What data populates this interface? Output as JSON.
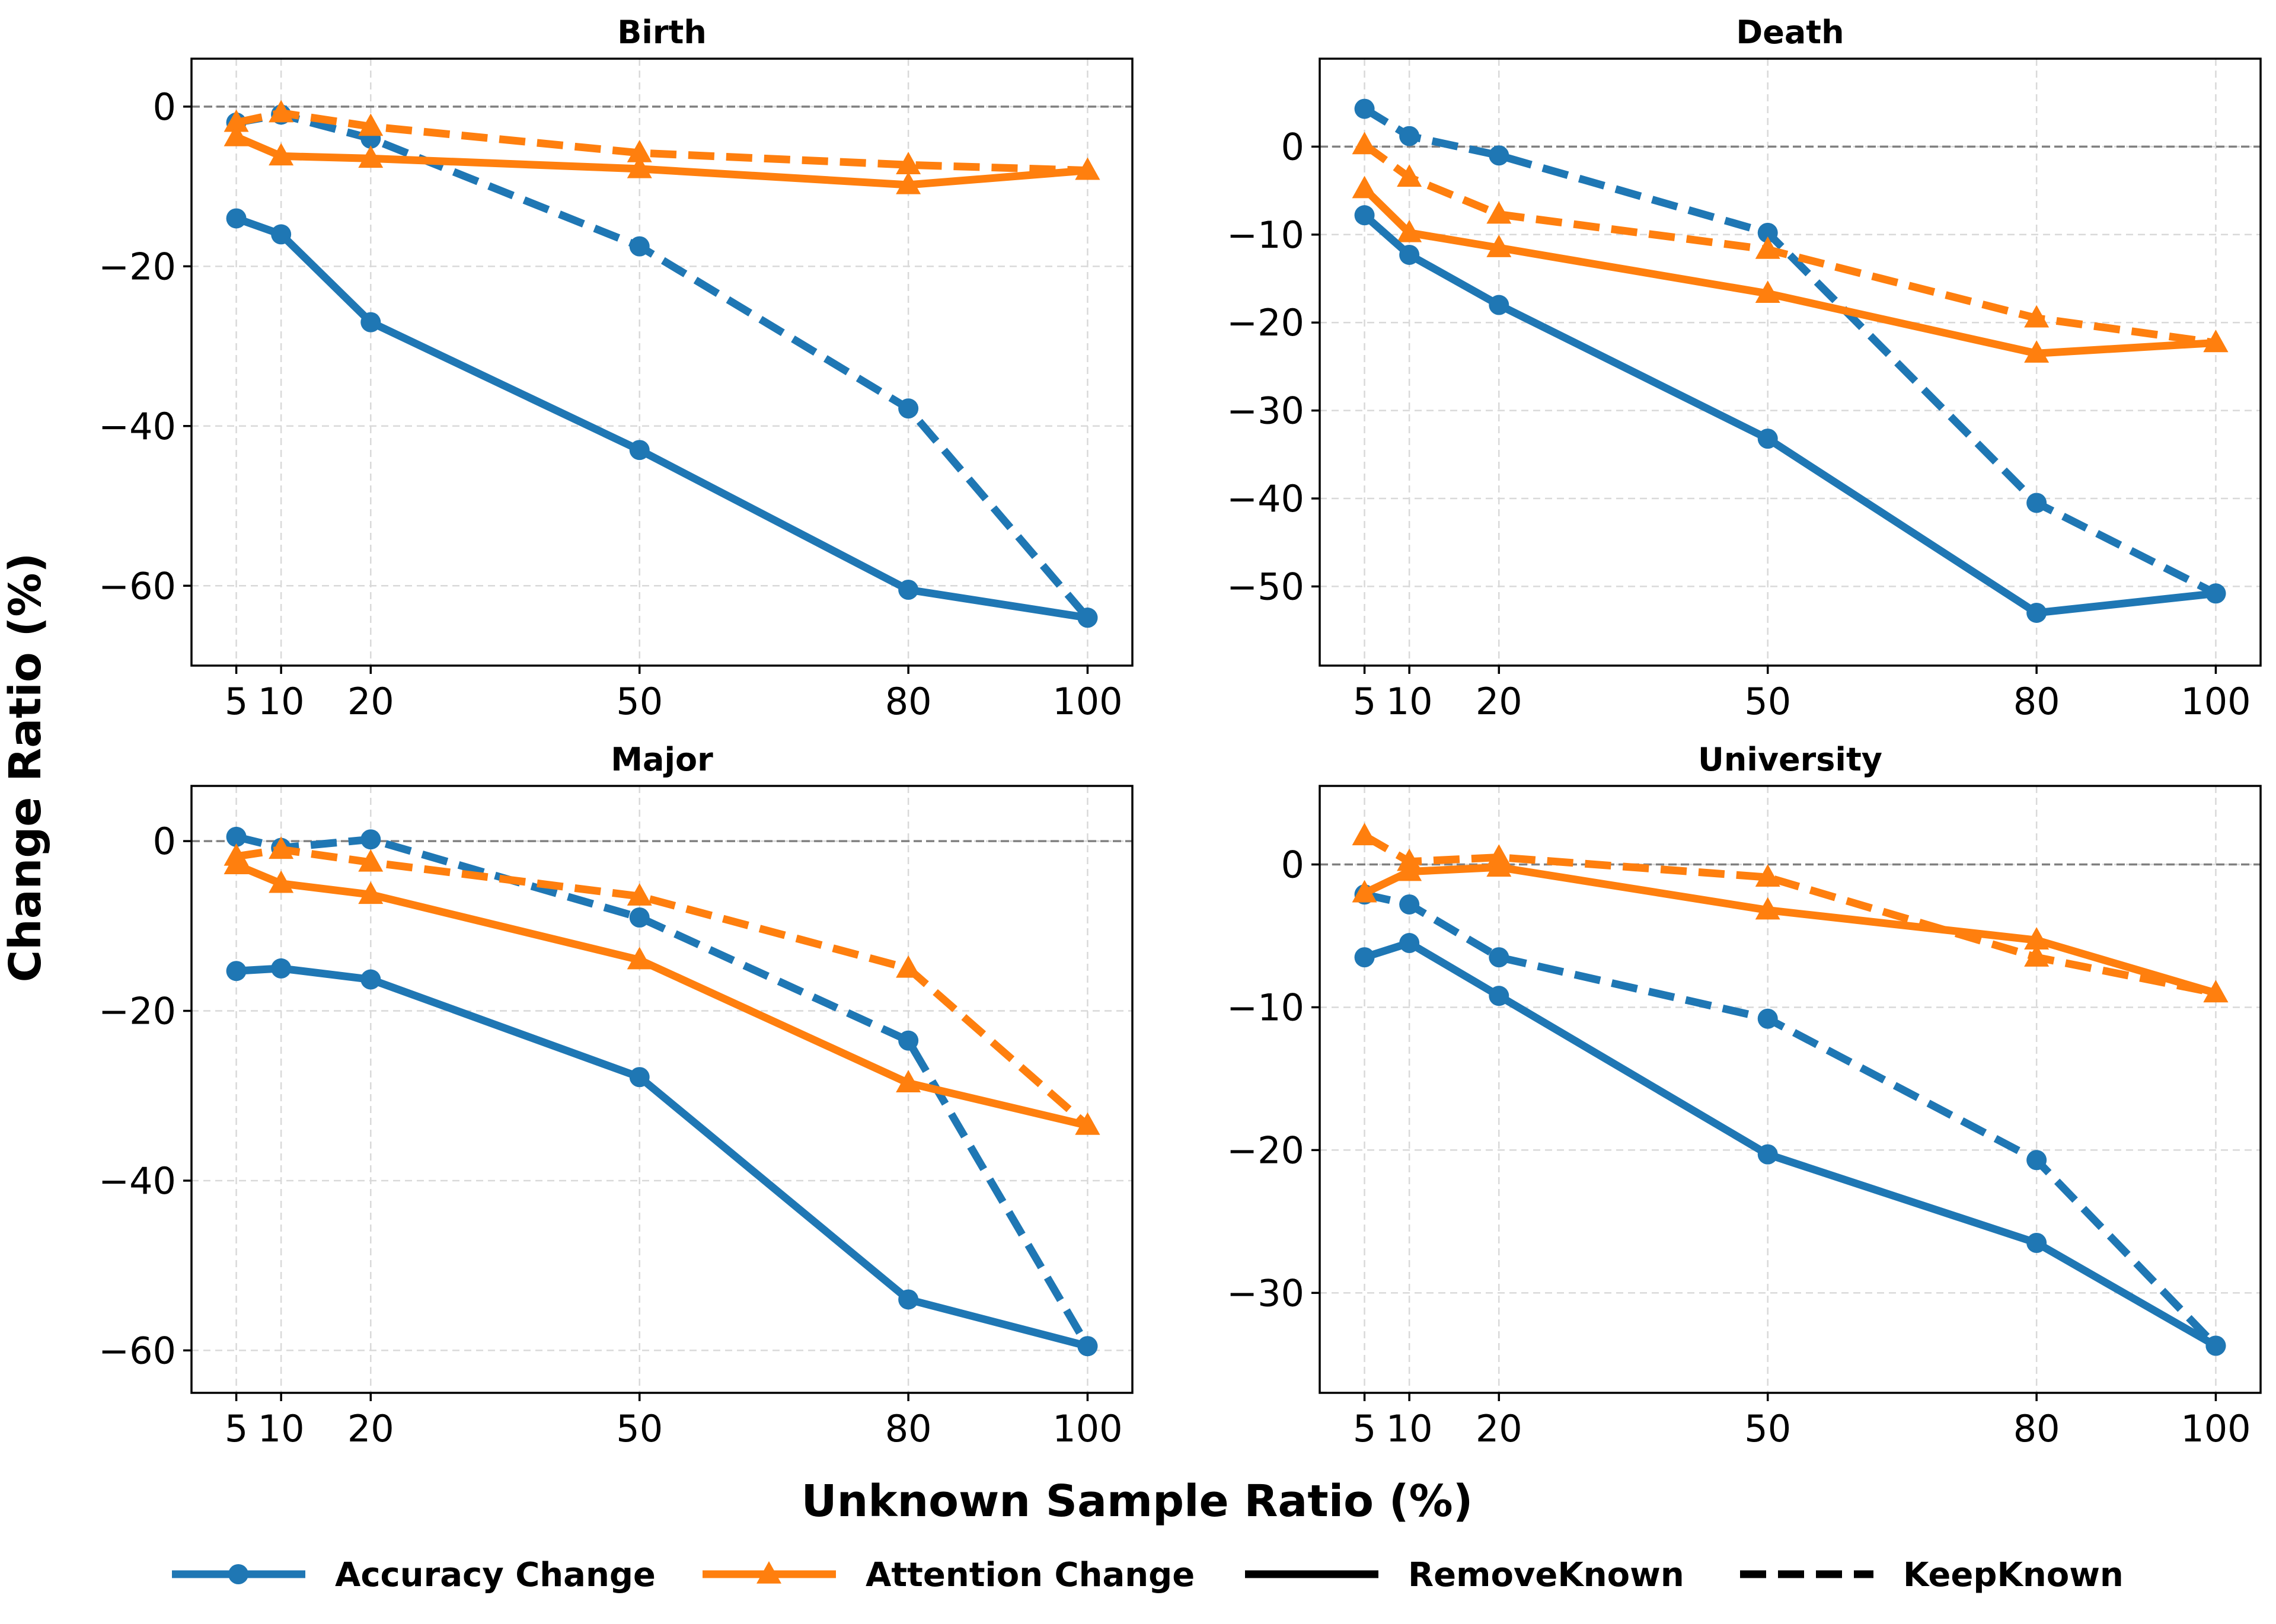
{
  "figure": {
    "xlabel": "Unknown Sample Ratio (%)",
    "ylabel": "Change Ratio (%)"
  },
  "colors": {
    "accuracy": "#1f77b4",
    "attention": "#ff7f0e",
    "legend_line": "#000000",
    "zero_line": "#808080",
    "grid": "#d9d9d9"
  },
  "legend": {
    "placement": "bottom-center",
    "items": [
      {
        "label": "Accuracy Change",
        "kind": "series",
        "color_key": "accuracy",
        "marker": "circle",
        "dash": "solid"
      },
      {
        "label": "Attention Change",
        "kind": "series",
        "color_key": "attention",
        "marker": "triangle",
        "dash": "solid"
      },
      {
        "label": "RemoveKnown",
        "kind": "style",
        "color_key": "legend_line",
        "marker": "none",
        "dash": "solid"
      },
      {
        "label": "KeepKnown",
        "kind": "style",
        "color_key": "legend_line",
        "marker": "none",
        "dash": "dashed"
      }
    ]
  },
  "chart_data": [
    {
      "type": "line",
      "title": "Birth",
      "x": [
        5,
        10,
        20,
        50,
        80,
        100
      ],
      "xticks": [
        5,
        10,
        20,
        50,
        80,
        100
      ],
      "xlim": [
        0,
        105
      ],
      "ylim": [
        -70,
        6
      ],
      "yticks": [
        0,
        -20,
        -40,
        -60
      ],
      "grid": true,
      "series": [
        {
          "name": "Accuracy Change (KeepKnown)",
          "metric": "accuracy",
          "style": "dashed",
          "values": [
            -2,
            -1,
            -4,
            -17.5,
            -37.8,
            -64
          ]
        },
        {
          "name": "Attention Change (KeepKnown)",
          "metric": "attention",
          "style": "dashed",
          "values": [
            -2,
            -0.8,
            -2.5,
            -5.8,
            -7.3,
            -8
          ]
        },
        {
          "name": "Attention Change (RemoveKnown)",
          "metric": "attention",
          "style": "solid",
          "values": [
            -3.8,
            -6.2,
            -6.5,
            -7.8,
            -9.8,
            -8
          ]
        },
        {
          "name": "Accuracy Change (RemoveKnown)",
          "metric": "accuracy",
          "style": "solid",
          "values": [
            -14,
            -16,
            -27,
            -43,
            -60.5,
            -64
          ]
        }
      ]
    },
    {
      "type": "line",
      "title": "Death",
      "x": [
        5,
        10,
        20,
        50,
        80,
        100
      ],
      "xticks": [
        5,
        10,
        20,
        50,
        80,
        100
      ],
      "xlim": [
        0,
        105
      ],
      "ylim": [
        -59,
        10
      ],
      "yticks": [
        0,
        -10,
        -20,
        -30,
        -40,
        -50
      ],
      "grid": true,
      "series": [
        {
          "name": "Accuracy Change (KeepKnown)",
          "metric": "accuracy",
          "style": "dashed",
          "values": [
            4.3,
            1.2,
            -1,
            -9.8,
            -40.5,
            -50.8
          ]
        },
        {
          "name": "Attention Change (KeepKnown)",
          "metric": "attention",
          "style": "dashed",
          "values": [
            0.2,
            -3.5,
            -7.7,
            -11.7,
            -19.5,
            -22.3
          ]
        },
        {
          "name": "Attention Change (RemoveKnown)",
          "metric": "attention",
          "style": "solid",
          "values": [
            -4.8,
            -9.8,
            -11.5,
            -16.7,
            -23.5,
            -22.3
          ]
        },
        {
          "name": "Accuracy Change (RemoveKnown)",
          "metric": "accuracy",
          "style": "solid",
          "values": [
            -7.8,
            -12.3,
            -18,
            -33.2,
            -53,
            -50.8
          ]
        }
      ]
    },
    {
      "type": "line",
      "title": "Major",
      "x": [
        5,
        10,
        20,
        50,
        80,
        100
      ],
      "xticks": [
        5,
        10,
        20,
        50,
        80,
        100
      ],
      "xlim": [
        0,
        105
      ],
      "ylim": [
        -65,
        6.5
      ],
      "yticks": [
        0,
        -20,
        -40,
        -60
      ],
      "grid": true,
      "series": [
        {
          "name": "Accuracy Change (KeepKnown)",
          "metric": "accuracy",
          "style": "dashed",
          "values": [
            0.5,
            -0.8,
            0.2,
            -9,
            -23.5,
            -59.5
          ]
        },
        {
          "name": "Attention Change (KeepKnown)",
          "metric": "attention",
          "style": "dashed",
          "values": [
            -1.8,
            -1,
            -2.5,
            -6.5,
            -15,
            -33.5
          ]
        },
        {
          "name": "Attention Change (RemoveKnown)",
          "metric": "attention",
          "style": "solid",
          "values": [
            -2.8,
            -5,
            -6.3,
            -14,
            -28.5,
            -33.5
          ]
        },
        {
          "name": "Accuracy Change (RemoveKnown)",
          "metric": "accuracy",
          "style": "solid",
          "values": [
            -15.3,
            -15,
            -16.3,
            -27.8,
            -54,
            -59.5
          ]
        }
      ]
    },
    {
      "type": "line",
      "title": "University",
      "x": [
        5,
        10,
        20,
        50,
        80,
        100
      ],
      "xticks": [
        5,
        10,
        20,
        50,
        80,
        100
      ],
      "xlim": [
        0,
        105
      ],
      "ylim": [
        -37,
        5.5
      ],
      "yticks": [
        0,
        -10,
        -20,
        -30
      ],
      "grid": true,
      "series": [
        {
          "name": "Accuracy Change (KeepKnown)",
          "metric": "accuracy",
          "style": "dashed",
          "values": [
            -2.1,
            -2.8,
            -6.5,
            -10.8,
            -20.7,
            -33.7
          ]
        },
        {
          "name": "Attention Change (KeepKnown)",
          "metric": "attention",
          "style": "dashed",
          "values": [
            2,
            0.2,
            0.5,
            -0.9,
            -6.5,
            -9
          ]
        },
        {
          "name": "Attention Change (RemoveKnown)",
          "metric": "attention",
          "style": "solid",
          "values": [
            -2,
            -0.5,
            -0.2,
            -3.2,
            -5.3,
            -9
          ]
        },
        {
          "name": "Accuracy Change (RemoveKnown)",
          "metric": "accuracy",
          "style": "solid",
          "values": [
            -6.5,
            -5.5,
            -9.2,
            -20.3,
            -26.5,
            -33.7
          ]
        }
      ]
    }
  ]
}
